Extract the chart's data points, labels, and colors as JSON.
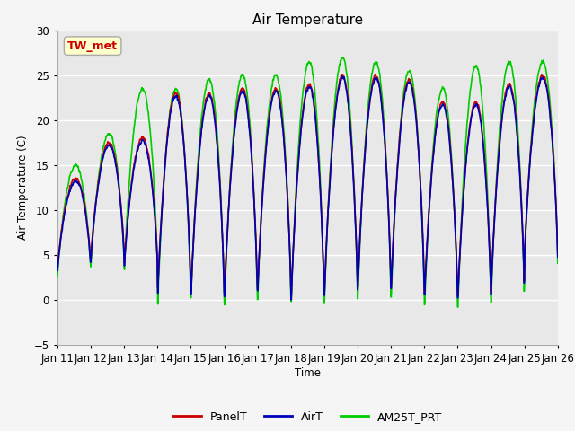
{
  "title": "Air Temperature",
  "ylabel": "Air Temperature (C)",
  "xlabel": "Time",
  "ylim": [
    -5,
    30
  ],
  "background_color": "#e8e8e8",
  "plot_bg": "#e8e8e8",
  "outer_bg": "#f5f5f5",
  "grid_color": "#ffffff",
  "annotation_text": "TW_met",
  "annotation_bg": "#ffffcc",
  "annotation_border": "#aaaaaa",
  "annotation_text_color": "#cc0000",
  "x_tick_labels": [
    "Jan 11",
    "Jan 12",
    "Jan 13",
    "Jan 14",
    "Jan 15",
    "Jan 16",
    "Jan 17",
    "Jan 18",
    "Jan 19",
    "Jan 20",
    "Jan 21",
    "Jan 22",
    "Jan 23",
    "Jan 24",
    "Jan 25",
    "Jan 26"
  ],
  "legend_labels": [
    "PanelT",
    "AirT",
    "AM25T_PRT"
  ],
  "legend_colors": [
    "#cc0000",
    "#0000bb",
    "#00cc00"
  ],
  "line_width": 1.2,
  "num_days": 15,
  "pts_per_day": 144
}
